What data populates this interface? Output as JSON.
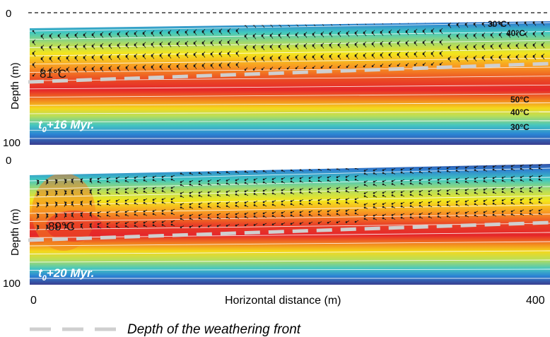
{
  "panels": [
    {
      "time_label": "t",
      "time_sub": "0",
      "time_rest": "+16 Myr.",
      "max_temp": "81°C",
      "depth_top": "0",
      "depth_bottom": "100",
      "depth_axis_label": "Depth  (m)",
      "iso_top": [
        "30°C",
        "40°C"
      ],
      "iso_bottom": [
        "50°C",
        "40°C",
        "30°C"
      ]
    },
    {
      "time_label": "t",
      "time_sub": "0",
      "time_rest": "+20 Myr.",
      "max_temp": "89°C",
      "depth_top": "0",
      "depth_bottom": "100",
      "depth_axis_label": "Depth  (m)"
    }
  ],
  "x_axis": {
    "label": "Horizontal distance   (m)",
    "min": "0",
    "max": "400"
  },
  "legend": {
    "label": "Depth of the weathering front"
  },
  "colors": {
    "cold": "#3b3c8c",
    "cool": "#2f8fd6",
    "mid": "#3fc7b6",
    "warm_yellow": "#f2e51a",
    "orange": "#f7931e",
    "hot": "#e8262a",
    "front_line": "#cfcfcf",
    "arrow": "#222222",
    "isotherm": "#ffffff"
  }
}
